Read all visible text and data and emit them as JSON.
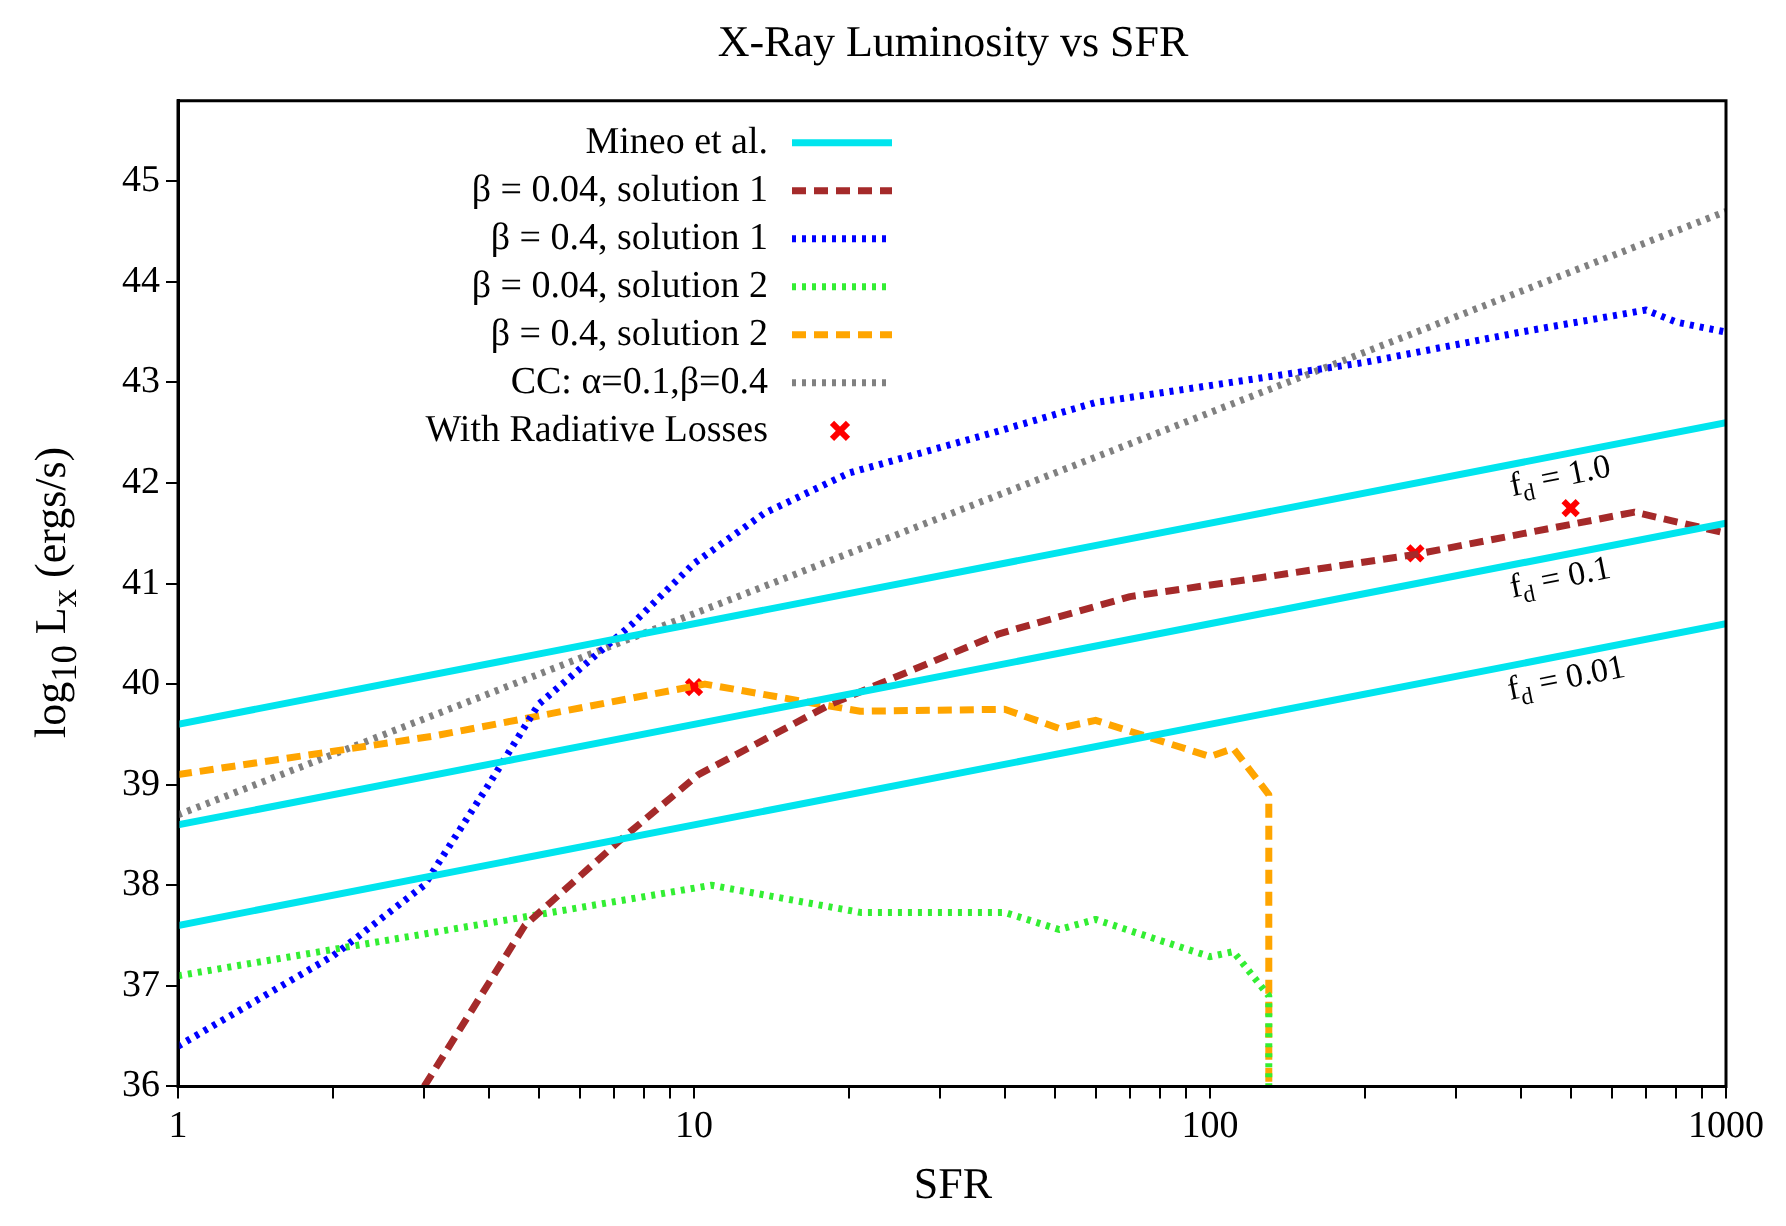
{
  "chart_data": {
    "type": "line",
    "title": "X-Ray Luminosity vs SFR",
    "xlabel": "SFR",
    "ylabel": "log$_{10}$ L$_{x}$ (ergs/s)",
    "log": "x",
    "grid": false,
    "legend": "top left",
    "marker": "none",
    "xlim": [
      1,
      1000
    ],
    "xticks": [
      1,
      {
        "value": 2,
        "label": null
      },
      {
        "value": 3,
        "label": null
      },
      {
        "value": 4,
        "label": null
      },
      {
        "value": 5,
        "label": null
      },
      {
        "value": 6,
        "label": null
      },
      {
        "value": 7,
        "label": null
      },
      {
        "value": 8,
        "label": null
      },
      {
        "value": 9,
        "label": null
      },
      10,
      {
        "value": 20,
        "label": null
      },
      {
        "value": 30,
        "label": null
      },
      {
        "value": 40,
        "label": null
      },
      {
        "value": 50,
        "label": null
      },
      {
        "value": 60,
        "label": null
      },
      {
        "value": 70,
        "label": null
      },
      {
        "value": 80,
        "label": null
      },
      {
        "value": 90,
        "label": null
      },
      100,
      {
        "value": 200,
        "label": null
      },
      {
        "value": 300,
        "label": null
      },
      {
        "value": 400,
        "label": null
      },
      {
        "value": 500,
        "label": null
      },
      {
        "value": 600,
        "label": null
      },
      {
        "value": 700,
        "label": null
      },
      {
        "value": 800,
        "label": null
      },
      {
        "value": 900,
        "label": null
      },
      1000
    ],
    "ylim": [
      36,
      45.8
    ],
    "yticks": [
      36,
      37,
      38,
      39,
      40,
      41,
      42,
      43,
      44,
      45
    ],
    "series": [
      {
        "name": "Mineo et al.",
        "color": "#00e5ee",
        "line_style": "solid",
        "x": [
          1,
          1000
        ],
        "values": [
          39.6,
          42.6
        ]
      },
      {
        "color": "#00e5ee",
        "line_style": "solid",
        "x": [
          1,
          1000
        ],
        "values": [
          38.6,
          41.6
        ]
      },
      {
        "color": "#00e5ee",
        "line_style": "solid",
        "x": [
          1,
          1000
        ],
        "values": [
          37.6,
          40.6
        ]
      },
      {
        "name": "β = 0.04, solution 1",
        "color": "#a52a2a",
        "line_style": "dashed",
        "x": [
          3,
          4.7,
          7.2,
          10.2,
          18.4,
          39,
          70,
          126,
          250,
          665,
          1000
        ],
        "values": [
          36,
          37.6,
          38.45,
          39.1,
          39.8,
          40.5,
          40.87,
          41.06,
          41.29,
          41.71,
          41.5
        ]
      },
      {
        "name": "β = 0.4, solution 1",
        "color": "#0000ff",
        "line_style": "dotted",
        "x": [
          1,
          2,
          3,
          4,
          5,
          7.6,
          10,
          13.7,
          20,
          38,
          60,
          110,
          200,
          400,
          700,
          800,
          1000
        ],
        "values": [
          36.4,
          37.3,
          38,
          39,
          39.8,
          40.6,
          41.2,
          41.7,
          42.1,
          42.5,
          42.8,
          43,
          43.2,
          43.5,
          43.72,
          43.6,
          43.5
        ]
      },
      {
        "name": "β = 0.04, solution 2",
        "color": "#33ee33",
        "line_style": "dotted",
        "x": [
          1,
          10.8,
          21,
          40,
          51,
          60,
          100,
          111,
          130,
          130
        ],
        "values": [
          37.1,
          38,
          37.73,
          37.73,
          37.56,
          37.66,
          37.29,
          37.34,
          36.9,
          36
        ]
      },
      {
        "name": "β = 0.4, solution 2",
        "color": "#ffa500",
        "line_style": "dashed",
        "x": [
          1,
          3.1,
          10.5,
          17.5,
          21,
          40,
          51,
          60,
          100,
          111,
          130,
          130
        ],
        "values": [
          39.1,
          39.48,
          40,
          39.8,
          39.73,
          39.75,
          39.56,
          39.64,
          39.28,
          39.36,
          38.9,
          36
        ]
      },
      {
        "name": "CC: α=0.1,β=0.4",
        "color": "#808080",
        "line_style": "dotted",
        "x": [
          1,
          1000
        ],
        "values": [
          38.7,
          44.7
        ]
      },
      {
        "name": "With Radiative Losses",
        "type": "scatter",
        "marker": "cross",
        "color": "#ff0000",
        "x": [
          10,
          250,
          500
        ],
        "values": [
          39.97,
          41.3,
          41.75
        ]
      }
    ],
    "annotations": [
      "f$_{d}$ = 1.0",
      "f$_{d}$ = 0.1",
      "f$_{d}$ = 0.01"
    ]
  }
}
